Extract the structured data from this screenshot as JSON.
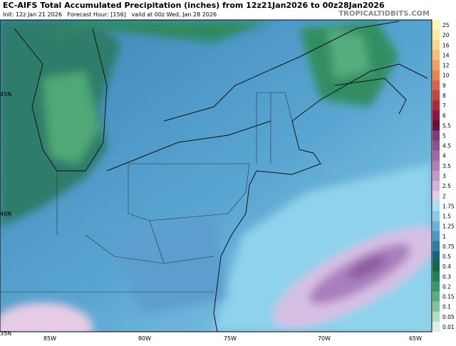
{
  "header": {
    "title": "EC-AIFS Total Accumulated Precipitation (inches) from 12z21Jan2026 to 00z28Jan2026",
    "subtitle": "Init: 12z Jan 21 2026   Forecast Hour: [156]   valid at 00z Wed, Jan 28 2026",
    "site": "TROPICALTIDBITS.COM"
  },
  "axes": {
    "lat_labels": [
      "45N",
      "40N",
      "35N"
    ],
    "lon_labels": [
      "85W",
      "80W",
      "75W",
      "70W",
      "65W"
    ]
  },
  "colorbar": {
    "labels": [
      "25",
      "20",
      "16",
      "14",
      "12",
      "10",
      "9",
      "8",
      "7",
      "6",
      "5.5",
      "5",
      "4.5",
      "4",
      "3.5",
      "3",
      "2.5",
      "2",
      "1.75",
      "1.5",
      "1.25",
      "1",
      "0.75",
      "0.5",
      "0.4",
      "0.3",
      "0.2",
      "0.15",
      "0.1",
      "0.05",
      "0.01"
    ],
    "colors": [
      "#fff8b0",
      "#fde9a0",
      "#fbd58c",
      "#f7bd78",
      "#f2a062",
      "#ea8150",
      "#df6146",
      "#cc423e",
      "#ae2a3b",
      "#8a173d",
      "#6a0f3c",
      "#7c3d81",
      "#8d5193",
      "#9f67a6",
      "#b17fb8",
      "#c398c9",
      "#d4b2d9",
      "#e4cbe8",
      "#a7dff2",
      "#87cbe8",
      "#67b3da",
      "#4a98c7",
      "#2e7bab",
      "#18617f",
      "#0e6a4b",
      "#1f8158",
      "#359869",
      "#56ae82",
      "#7fc6a0",
      "#aedfc1",
      "#daf1e4"
    ]
  }
}
